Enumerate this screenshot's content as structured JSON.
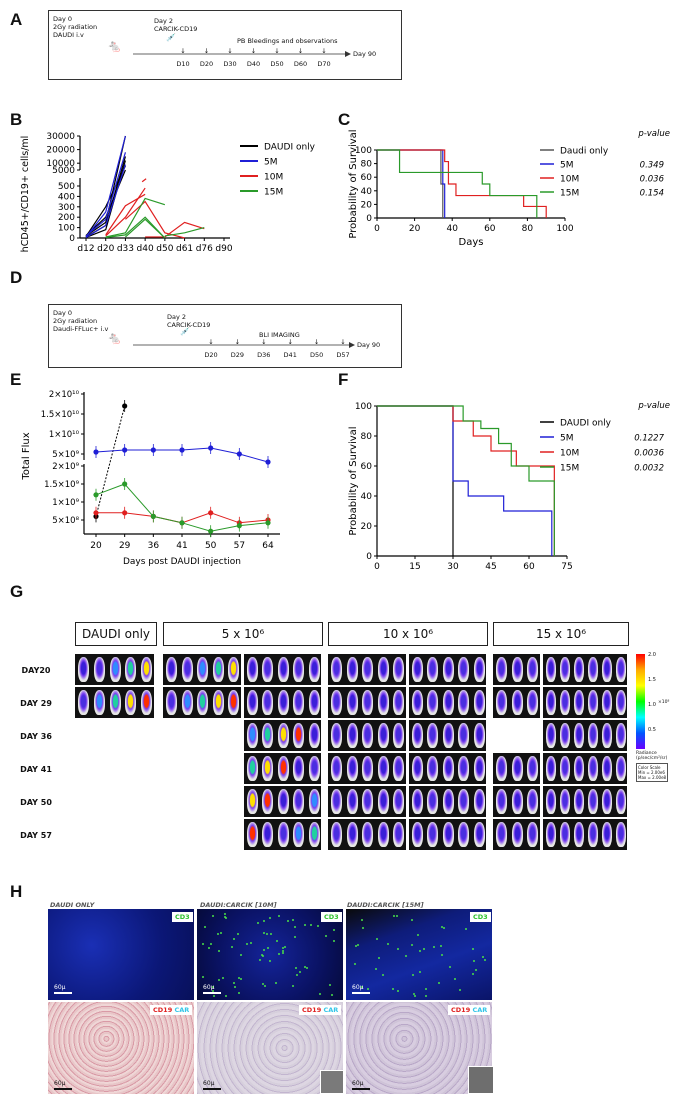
{
  "panels": {
    "A": "A",
    "B": "B",
    "C": "C",
    "D": "D",
    "E": "E",
    "F": "F",
    "G": "G",
    "H": "H"
  },
  "timelineA": {
    "day0": "Day 0\n2Gy radiation\nDAUDI i.v",
    "day2": "Day 2\nCARCIK-CD19",
    "caption": "PB Bleedings and observations",
    "end": "Day 90",
    "days": [
      "D10",
      "D20",
      "D30",
      "D40",
      "D50",
      "D60",
      "D70"
    ]
  },
  "timelineD": {
    "day0": "Day 0\n2Gy radiation\nDaudi-FFLuc+ i.v",
    "day2": "Day 2\nCARCIK-CD19",
    "caption": "BLI IMAGING",
    "end": "Day 90",
    "days": [
      "D20",
      "D29",
      "D36",
      "D41",
      "D50",
      "D57"
    ]
  },
  "chart_data": [
    {
      "id": "B",
      "type": "line",
      "ylabel": "hCD45+/CD19+ cells/ml",
      "categories": [
        "d12",
        "d20",
        "d33",
        "d40",
        "d50",
        "d61",
        "d76",
        "d90"
      ],
      "yticks_upper": [
        "30000",
        "20000",
        "10000",
        "5000"
      ],
      "yticks_lower": [
        "500",
        "400",
        "300",
        "200",
        "100",
        "0"
      ],
      "legend": [
        "DAUDI only",
        "5M",
        "10M",
        "15M"
      ],
      "colors": [
        "#000000",
        "#1f1fd6",
        "#e02020",
        "#2a9a2a"
      ],
      "series": [
        {
          "name": "DAUDI only",
          "lines": [
            [
              [
                0,
                20
              ],
              [
                1,
                150
              ],
              [
                2,
                30000
              ]
            ],
            [
              [
                0,
                10
              ],
              [
                1,
                120
              ],
              [
                2,
                15000
              ]
            ],
            [
              [
                0,
                15
              ],
              [
                1,
                300
              ],
              [
                2,
                8000
              ]
            ],
            [
              [
                0,
                5
              ],
              [
                1,
                80
              ],
              [
                2,
                12000
              ]
            ],
            [
              [
                0,
                25
              ],
              [
                1,
                200
              ],
              [
                2,
                5000
              ]
            ]
          ]
        },
        {
          "name": "5M",
          "lines": [
            [
              [
                0,
                10
              ],
              [
                1,
                250
              ],
              [
                2,
                30000
              ]
            ],
            [
              [
                0,
                20
              ],
              [
                1,
                180
              ],
              [
                2,
                18000
              ]
            ],
            [
              [
                0,
                5
              ],
              [
                1,
                120
              ],
              [
                2,
                9000
              ]
            ]
          ]
        },
        {
          "name": "10M",
          "lines": [
            [
              [
                1,
                20
              ],
              [
                2,
                200
              ],
              [
                3,
                480
              ]
            ],
            [
              [
                1,
                30
              ],
              [
                2,
                310
              ],
              [
                3,
                420
              ]
            ],
            [
              [
                2,
                180
              ],
              [
                3,
                350
              ],
              [
                4,
                50
              ],
              [
                5,
                0
              ]
            ],
            [
              [
                3,
                10
              ],
              [
                4,
                10
              ],
              [
                5,
                150
              ],
              [
                6,
                90
              ]
            ],
            [
              [
                3,
                560
              ]
            ]
          ]
        },
        {
          "name": "15M",
          "lines": [
            [
              [
                1,
                10
              ],
              [
                2,
                50
              ],
              [
                3,
                380
              ],
              [
                4,
                320
              ]
            ],
            [
              [
                1,
                5
              ],
              [
                2,
                30
              ],
              [
                3,
                200
              ],
              [
                4,
                0
              ]
            ],
            [
              [
                2,
                10
              ],
              [
                3,
                180
              ],
              [
                4,
                0
              ]
            ],
            [
              [
                4,
                20
              ],
              [
                5,
                50
              ],
              [
                6,
                100
              ]
            ]
          ]
        }
      ]
    },
    {
      "id": "C",
      "type": "line",
      "xlabel": "Days",
      "ylabel": "Probability of Survival",
      "xticks": [
        "0",
        "20",
        "40",
        "60",
        "80",
        "100"
      ],
      "yticks": [
        "0",
        "20",
        "40",
        "60",
        "80",
        "100"
      ],
      "pvalue_header": "p-value",
      "legend": [
        "Daudi only",
        "5M",
        "10M",
        "15M"
      ],
      "pvalues": [
        "",
        "0.349",
        "0.036",
        "0.154"
      ],
      "colors": [
        "#555555",
        "#1f1fd6",
        "#e02020",
        "#2a9a2a"
      ],
      "series": [
        {
          "name": "Daudi only",
          "steps": [
            [
              0,
              100
            ],
            [
              34,
              100
            ],
            [
              34,
              50
            ],
            [
              35,
              50
            ],
            [
              35,
              0
            ]
          ]
        },
        {
          "name": "5M",
          "steps": [
            [
              0,
              100
            ],
            [
              35,
              100
            ],
            [
              35,
              50
            ],
            [
              36,
              50
            ],
            [
              36,
              0
            ]
          ]
        },
        {
          "name": "10M",
          "steps": [
            [
              0,
              100
            ],
            [
              36,
              100
            ],
            [
              36,
              83
            ],
            [
              38,
              83
            ],
            [
              38,
              50
            ],
            [
              42,
              50
            ],
            [
              42,
              33
            ],
            [
              78,
              33
            ],
            [
              78,
              17
            ],
            [
              90,
              17
            ],
            [
              90,
              0
            ]
          ]
        },
        {
          "name": "15M",
          "steps": [
            [
              0,
              100
            ],
            [
              12,
              100
            ],
            [
              12,
              67
            ],
            [
              56,
              67
            ],
            [
              56,
              50
            ],
            [
              60,
              50
            ],
            [
              60,
              33
            ],
            [
              85,
              33
            ],
            [
              85,
              0
            ]
          ]
        }
      ]
    },
    {
      "id": "E",
      "type": "line",
      "xlabel": "Days post DAUDI injection",
      "ylabel": "Total Flux",
      "categories": [
        "20",
        "29",
        "36",
        "41",
        "50",
        "57",
        "64"
      ],
      "yticks": [
        "2×10¹⁰",
        "1.5×10¹⁰",
        "1×10¹⁰",
        "5×10⁹",
        "2×10⁹",
        "1.5×10⁹",
        "1×10⁹",
        "5×10⁸"
      ],
      "colors": [
        "#000000",
        "#1f1fd6",
        "#e02020",
        "#2a9a2a"
      ],
      "series": [
        {
          "name": "DAUDI only",
          "values": [
            600000000.0,
            17000000000.0,
            null,
            null,
            null,
            null,
            null
          ]
        },
        {
          "name": "5M",
          "values": [
            5500000000.0,
            6000000000.0,
            6000000000.0,
            6000000000.0,
            6500000000.0,
            5000000000.0,
            3000000000.0
          ]
        },
        {
          "name": "10M",
          "values": [
            700000000.0,
            700000000.0,
            600000000.0,
            400000000.0,
            700000000.0,
            400000000.0,
            500000000.0
          ]
        },
        {
          "name": "15M",
          "values": [
            1200000000.0,
            1500000000.0,
            600000000.0,
            400000000.0,
            100000000.0,
            300000000.0,
            400000000.0
          ]
        }
      ]
    },
    {
      "id": "F",
      "type": "line",
      "xlabel": "Days",
      "ylabel": "Probability of Survival",
      "xticks": [
        "0",
        "15",
        "30",
        "45",
        "60",
        "75"
      ],
      "yticks": [
        "0",
        "20",
        "40",
        "60",
        "80",
        "100"
      ],
      "pvalue_header": "p-value",
      "legend": [
        "DAUDI only",
        "5M",
        "10M",
        "15M"
      ],
      "pvalues": [
        "",
        "0.1227",
        "0.0036",
        "0.0032"
      ],
      "colors": [
        "#000000",
        "#1f1fd6",
        "#e02020",
        "#2a9a2a"
      ],
      "series": [
        {
          "name": "DAUDI only",
          "steps": [
            [
              0,
              100
            ],
            [
              30,
              100
            ],
            [
              30,
              0
            ]
          ]
        },
        {
          "name": "5M",
          "steps": [
            [
              0,
              100
            ],
            [
              30,
              100
            ],
            [
              30,
              50
            ],
            [
              36,
              50
            ],
            [
              36,
              40
            ],
            [
              50,
              40
            ],
            [
              50,
              30
            ],
            [
              69,
              30
            ],
            [
              69,
              0
            ]
          ]
        },
        {
          "name": "10M",
          "steps": [
            [
              0,
              100
            ],
            [
              30,
              100
            ],
            [
              30,
              90
            ],
            [
              38,
              90
            ],
            [
              38,
              80
            ],
            [
              45,
              80
            ],
            [
              45,
              70
            ],
            [
              55,
              70
            ],
            [
              55,
              60
            ],
            [
              70,
              60
            ],
            [
              70,
              0
            ]
          ]
        },
        {
          "name": "15M",
          "steps": [
            [
              0,
              100
            ],
            [
              34,
              100
            ],
            [
              34,
              90
            ],
            [
              41,
              90
            ],
            [
              41,
              85
            ],
            [
              48,
              85
            ],
            [
              48,
              75
            ],
            [
              53,
              75
            ],
            [
              53,
              60
            ],
            [
              60,
              60
            ],
            [
              60,
              50
            ],
            [
              70,
              50
            ],
            [
              70,
              0
            ]
          ]
        }
      ]
    }
  ],
  "panelG": {
    "groups": [
      "DAUDI only",
      "5 x 10⁶",
      "10 x 10⁶",
      "15 x 10⁶"
    ],
    "rows": [
      "DAY20",
      "DAY 29",
      "DAY 36",
      "DAY 41",
      "DAY 50",
      "DAY 57"
    ],
    "scale_top": "2.0",
    "scale_ticks": [
      "1.5",
      "1.0",
      "0.5"
    ],
    "scale_unit": "×10⁸",
    "legend_label": "Radiance\n(p/sec/cm²/sr)",
    "legend_box": "Color Scale\nMin = 2.00e6\nMax = 2.00e8"
  },
  "panelH": {
    "titles": [
      "DAUDI ONLY",
      "DAUDI:CARCIK [10M]",
      "DAUDI:CARCIK [15M]"
    ],
    "cd3": "CD3",
    "cd19": "CD19",
    "car": "CAR",
    "scale": "60μ"
  }
}
